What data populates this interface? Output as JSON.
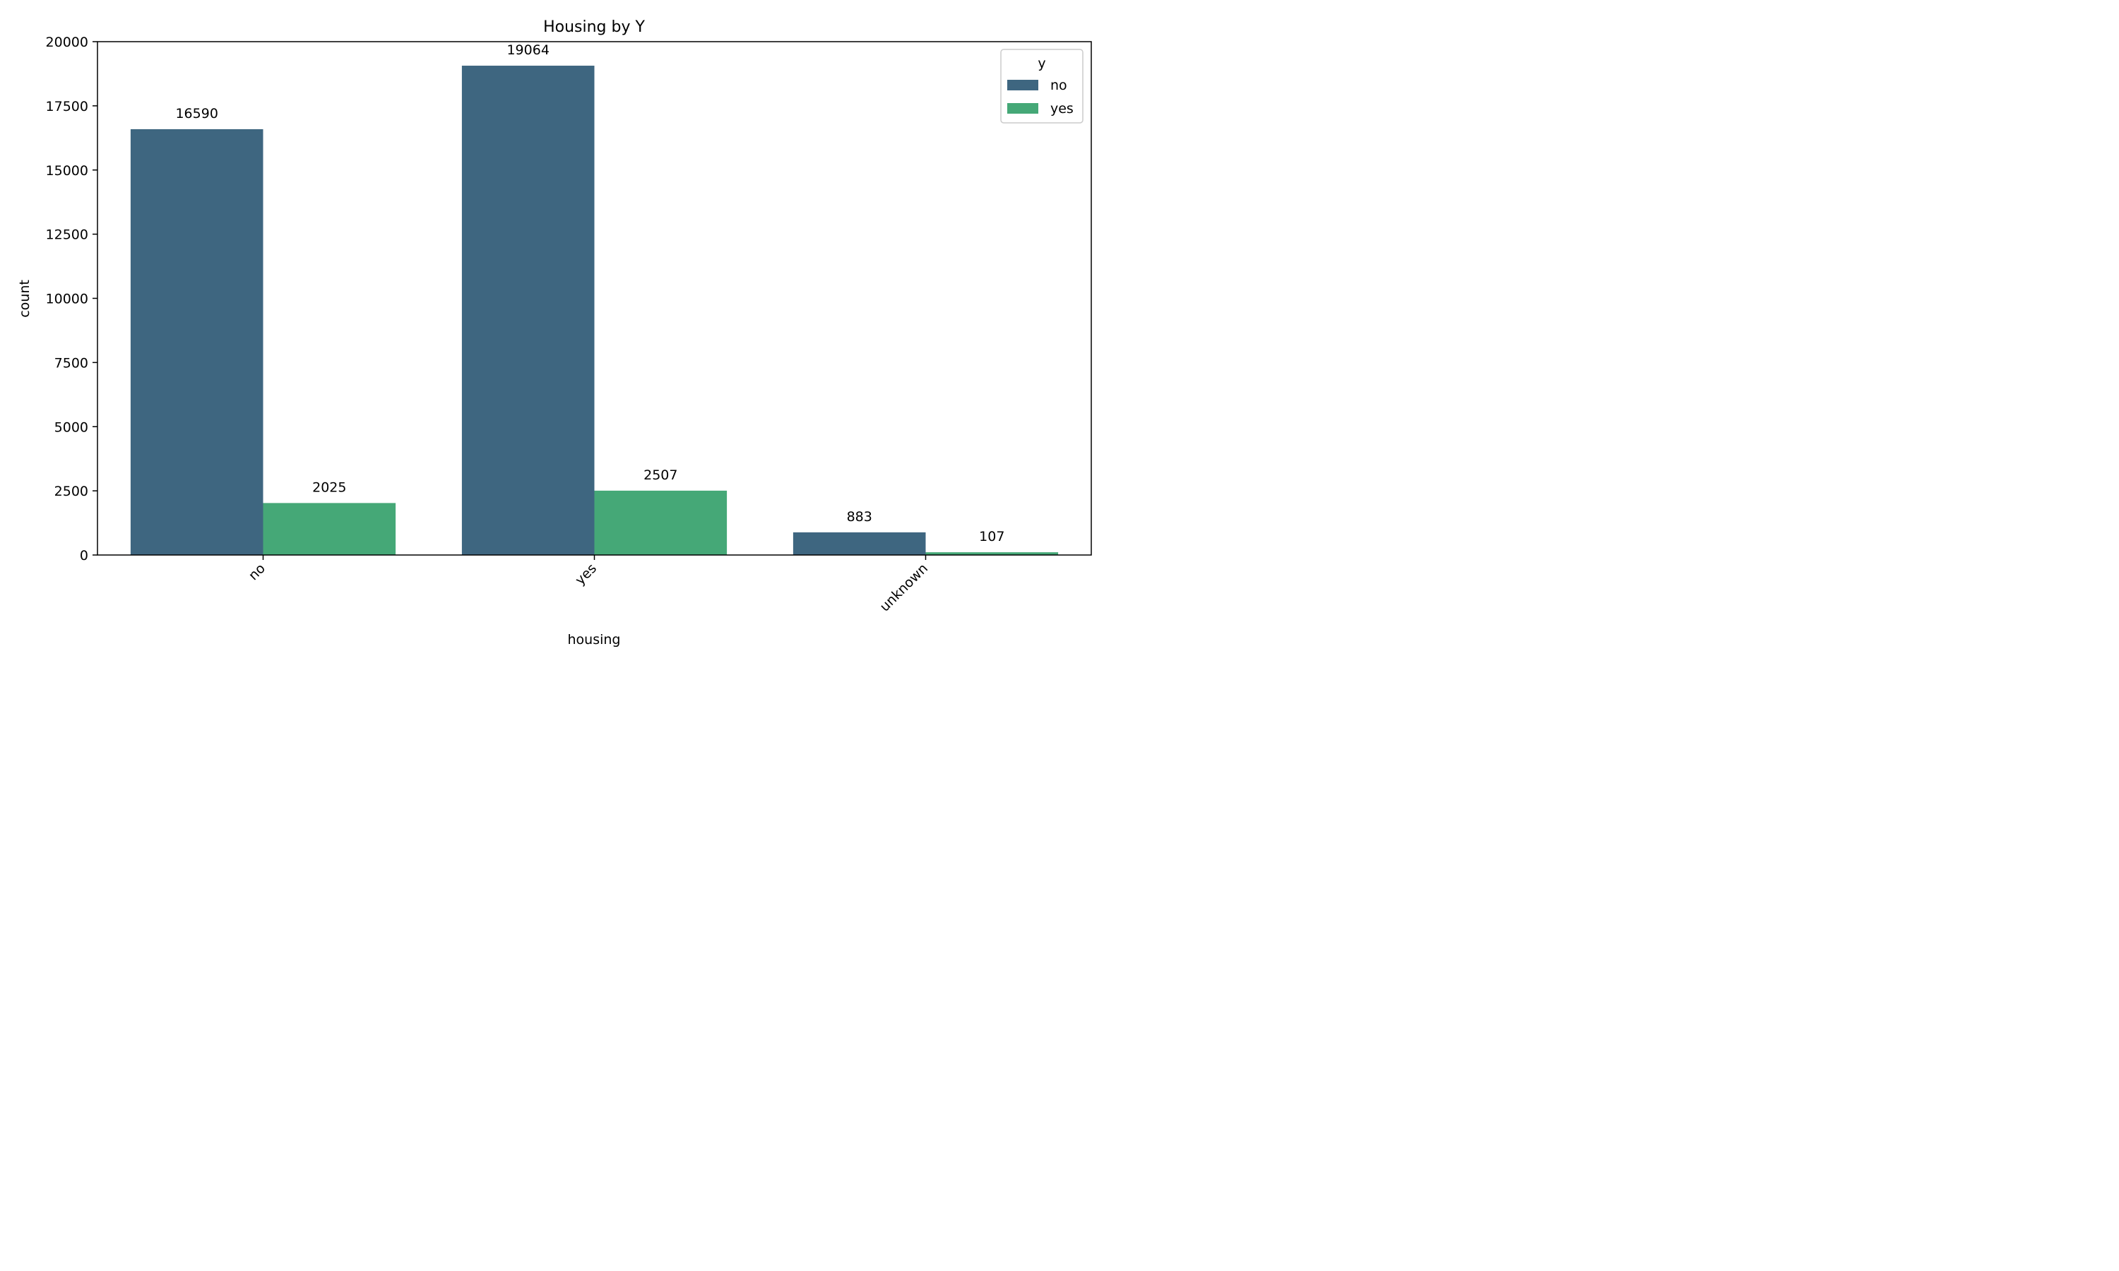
{
  "chart_data": {
    "type": "bar",
    "title": "Housing by Y",
    "xlabel": "housing",
    "ylabel": "count",
    "categories": [
      "no",
      "yes",
      "unknown"
    ],
    "series": [
      {
        "name": "no",
        "values": [
          16590,
          19064,
          883
        ],
        "color": "#3e6680"
      },
      {
        "name": "yes",
        "values": [
          2025,
          2507,
          107
        ],
        "color": "#45a877"
      }
    ],
    "ylim": [
      0,
      20000
    ],
    "yticks": [
      0,
      2500,
      5000,
      7500,
      10000,
      12500,
      15000,
      17500,
      20000
    ],
    "legend": {
      "title": "y",
      "position": "top-right"
    },
    "grid": false
  }
}
